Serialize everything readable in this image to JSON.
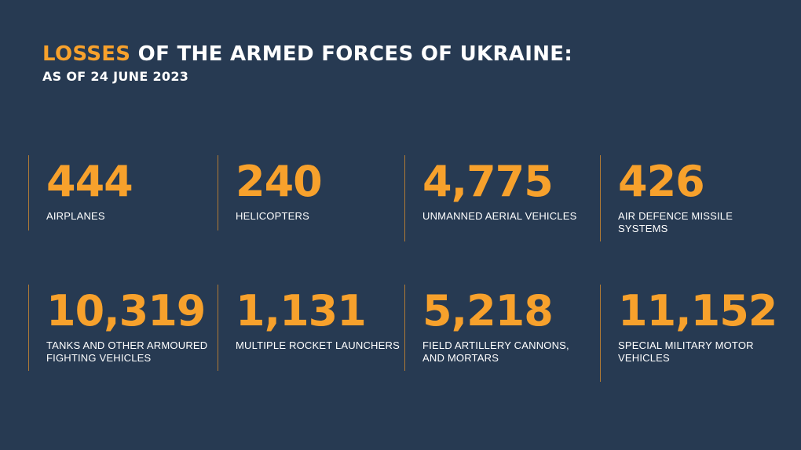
{
  "header": {
    "title_accent": "LOSSES",
    "title_rest": " OF THE ARMED FORCES OF UKRAINE:",
    "subtitle": "AS OF 24 JUNE 2023"
  },
  "stats": [
    {
      "value": "444",
      "label": "AIRPLANES"
    },
    {
      "value": "240",
      "label": "HELICOPTERS"
    },
    {
      "value": "4,775",
      "label": "UNMANNED AERIAL VEHICLES"
    },
    {
      "value": "426",
      "label": "AIR DEFENCE MISSILE SYSTEMS"
    },
    {
      "value": "10,319",
      "label": "TANKS AND OTHER ARMOURED FIGHTING VEHICLES"
    },
    {
      "value": "1,131",
      "label": "MULTIPLE ROCKET LAUNCHERS"
    },
    {
      "value": "5,218",
      "label": "FIELD ARTILLERY CANNONS, AND MORTARS"
    },
    {
      "value": "11,152",
      "label": "SPECIAL MILITARY MOTOR VEHICLES"
    }
  ],
  "colors": {
    "background": "#273a52",
    "accent": "#f7a12c",
    "text": "#ffffff",
    "divider": "#b07a35"
  }
}
